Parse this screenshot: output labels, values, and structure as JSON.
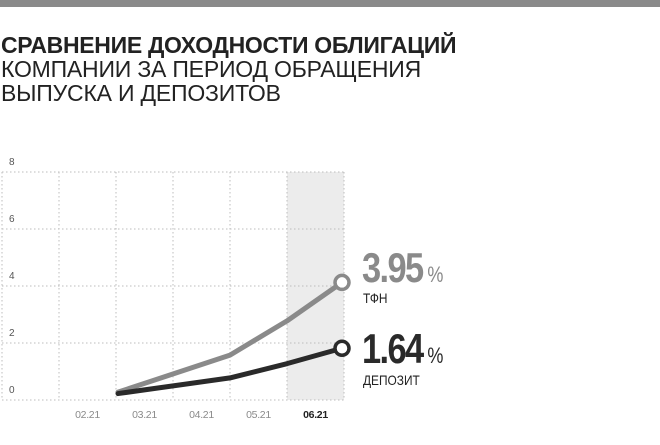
{
  "header": {
    "title_bold": "СРАВНЕНИЕ ДОХОДНОСТИ ОБЛИГАЦИЙ",
    "title_line2": "КОМПАНИИ ЗА ПЕРИОД ОБРАЩЕНИЯ",
    "title_line3": "ВЫПУСКА И ДЕПОЗИТОВ"
  },
  "colors": {
    "tfn": "#8a8a8a",
    "deposit": "#2a2a2a",
    "highlight": "#ececec",
    "grid": "#bdbdbd"
  },
  "chart_data": {
    "type": "line",
    "categories": [
      "02.21",
      "03.21",
      "04.21",
      "05.21",
      "06.21"
    ],
    "highlighted_category": "06.21",
    "ylim": [
      0,
      8
    ],
    "yticks": [
      0,
      2,
      4,
      6,
      8
    ],
    "grid": true,
    "series": [
      {
        "name": "ТФН",
        "x": [
          "03.21",
          "04.21",
          "05.21",
          "06.21"
        ],
        "values": [
          0.1,
          1.4,
          2.6,
          3.95
        ],
        "end_label": "3.95",
        "end_unit": "%"
      },
      {
        "name": "ДЕПОЗИТ",
        "x": [
          "03.21",
          "04.21",
          "05.21",
          "06.21"
        ],
        "values": [
          0.05,
          0.6,
          1.1,
          1.64
        ],
        "end_label": "1.64",
        "end_unit": "%"
      }
    ]
  }
}
